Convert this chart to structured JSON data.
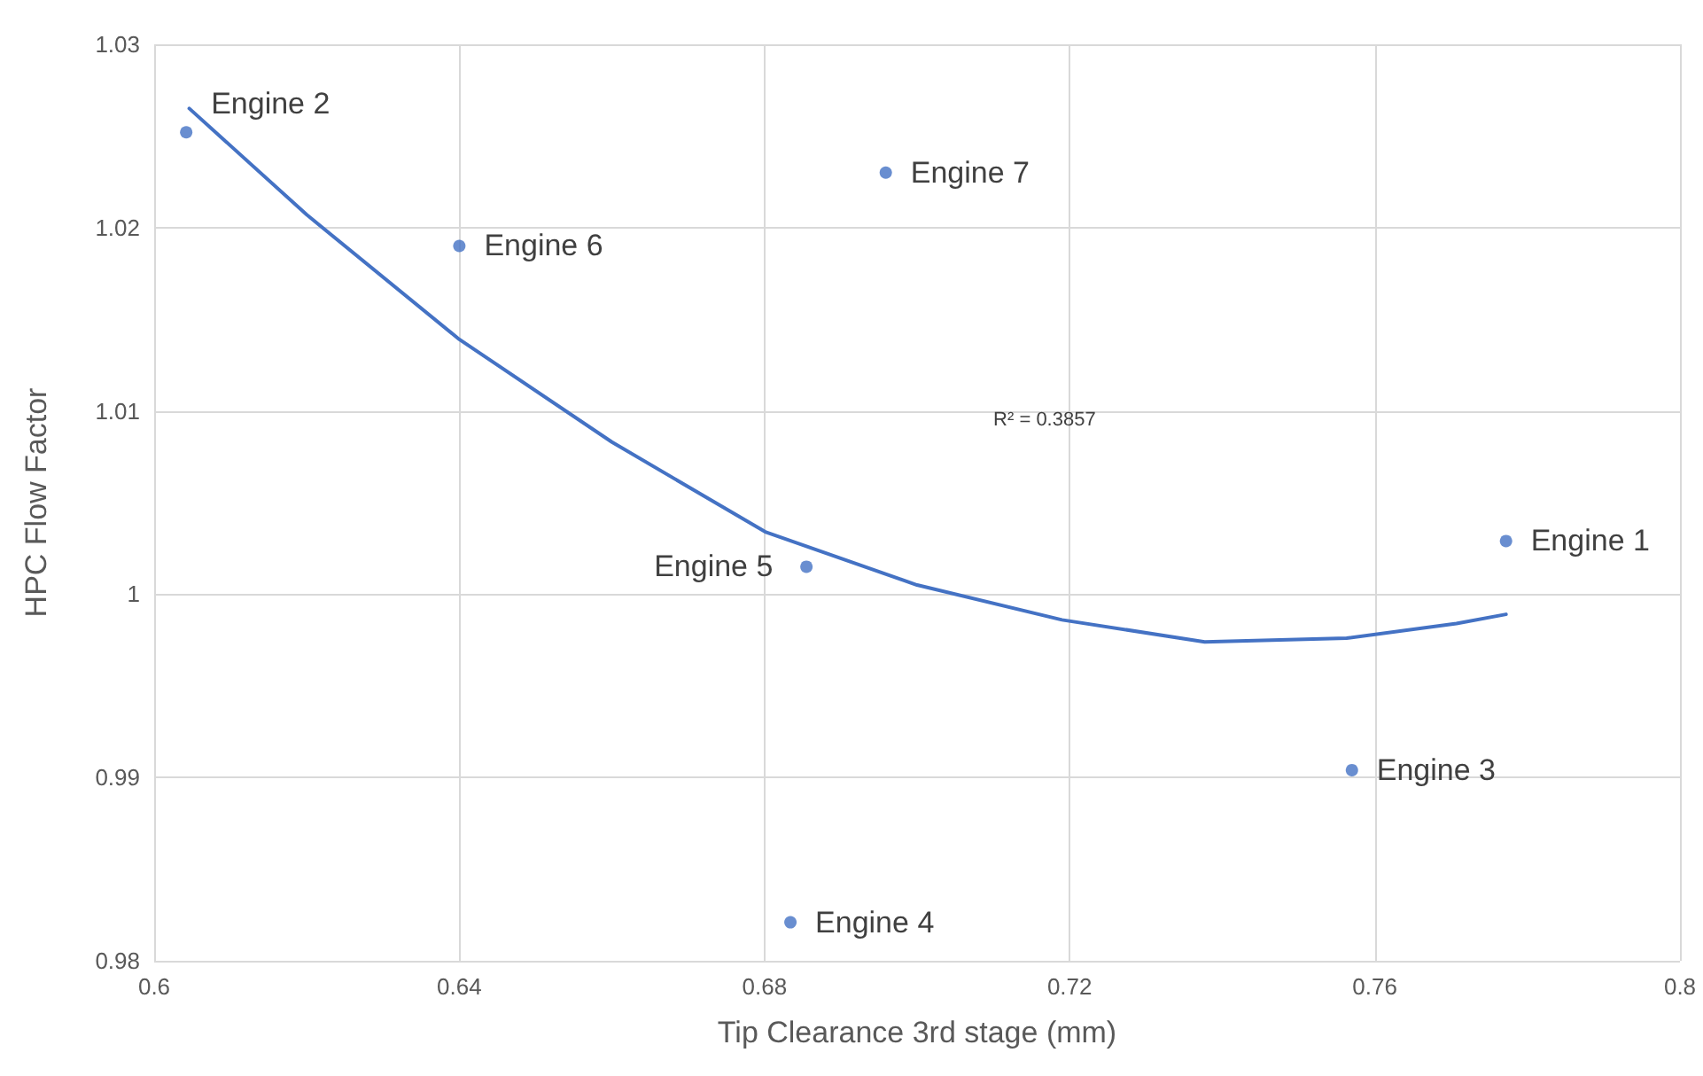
{
  "chart_data": {
    "type": "scatter",
    "xlabel": "Tip Clearance 3rd stage (mm)",
    "ylabel": "HPC Flow Factor",
    "xlim": [
      0.6,
      0.8
    ],
    "xticks": [
      0.6,
      0.64,
      0.68,
      0.72,
      0.76,
      0.8
    ],
    "ylim": [
      0.98,
      1.03
    ],
    "yticks": [
      0.98,
      0.99,
      1,
      1.01,
      1.02,
      1.03
    ],
    "grid": true,
    "marker": "circle",
    "series": [
      {
        "color": "#4472c4",
        "x": [
          0.7772,
          0.6042,
          0.757,
          0.6834,
          0.6855,
          0.64,
          0.6959
        ],
        "values": [
          1.0029,
          1.0252,
          0.9904,
          0.9821,
          1.0015,
          1.019,
          1.023
        ]
      },
      {
        "type": "line",
        "color": "#4472c4",
        "marker": "none",
        "x": [
          0.6046,
          0.62,
          0.64,
          0.66,
          0.6801,
          0.7,
          0.719,
          0.7377,
          0.7563,
          0.7707,
          0.7772
        ],
        "values": [
          1.0265,
          1.0207,
          1.0139,
          1.0083,
          1.0034,
          1.0005,
          0.9986,
          0.9974,
          0.9976,
          0.9984,
          0.9989
        ]
      }
    ],
    "annotations": [
      {
        "text": "Engine 1",
        "x": 0.7772,
        "y": 1.0029
      },
      {
        "text": "Engine 2",
        "x": 0.6042,
        "y": 1.0252
      },
      {
        "text": "Engine 3",
        "x": 0.757,
        "y": 0.9904
      },
      {
        "text": "Engine 4",
        "x": 0.6834,
        "y": 0.9821
      },
      {
        "text": "Engine 5",
        "x": 0.6855,
        "y": 1.0015
      },
      {
        "text": "Engine 6",
        "x": 0.64,
        "y": 1.019
      },
      {
        "text": "Engine 7",
        "x": 0.6959,
        "y": 1.023
      },
      "R² = 0.3857"
    ]
  }
}
